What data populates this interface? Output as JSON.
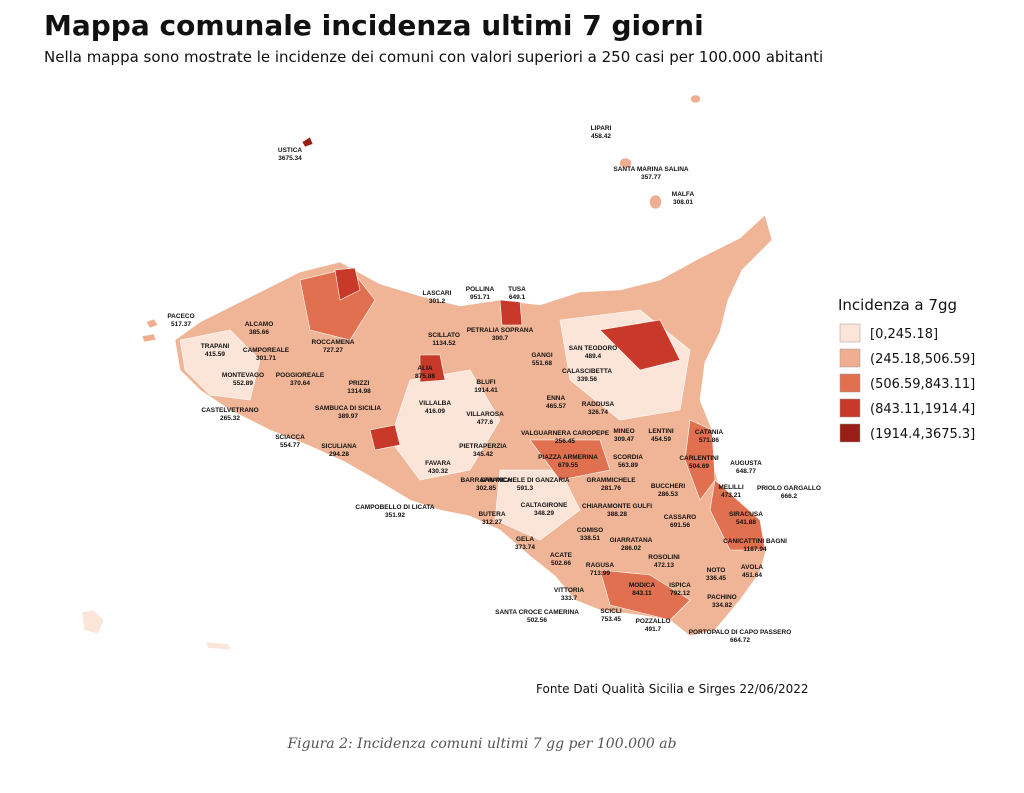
{
  "title": "Mappa comunale incidenza ultimi 7 giorni",
  "subtitle": "Nella mappa sono mostrate le incidenze dei comuni con valori superiori a 250 casi per 100.000 abitanti",
  "legend": {
    "title": "Incidenza a 7gg",
    "items": [
      {
        "label": "[0,245.18]",
        "color": "#fbe5d8"
      },
      {
        "label": "(245.18,506.59]",
        "color": "#efae91"
      },
      {
        "label": "(506.59,843.11]",
        "color": "#e0704f"
      },
      {
        "label": "(843.11,1914.4]",
        "color": "#c8392a"
      },
      {
        "label": "(1914.4,3675.3]",
        "color": "#9a1e18"
      }
    ]
  },
  "labels": [
    {
      "name": "USTICA",
      "value": "3675.34"
    },
    {
      "name": "LIPARI",
      "value": "458.42"
    },
    {
      "name": "SANTA MARINA SALINA",
      "value": "357.77"
    },
    {
      "name": "MALFA",
      "value": "308.01"
    },
    {
      "name": "LASCARI",
      "value": "301.2"
    },
    {
      "name": "POLLINA",
      "value": "951.71"
    },
    {
      "name": "TUSA",
      "value": "649.1"
    },
    {
      "name": "PACECO",
      "value": "517.37"
    },
    {
      "name": "ALCAMO",
      "value": "385.66"
    },
    {
      "name": "TRAPANI",
      "value": "415.59"
    },
    {
      "name": "CAMPOREALE",
      "value": "301.71"
    },
    {
      "name": "ROCCAMENA",
      "value": "727.27"
    },
    {
      "name": "SCILLATO",
      "value": "1134.52"
    },
    {
      "name": "PETRALIA SOPRANA",
      "value": "300.7"
    },
    {
      "name": "GANGI",
      "value": "551.68"
    },
    {
      "name": "SAN TEODORO",
      "value": "489.4"
    },
    {
      "name": "MONTEVAGO",
      "value": "552.89"
    },
    {
      "name": "POGGIOREALE",
      "value": "370.64"
    },
    {
      "name": "PRIZZI",
      "value": "1314.98"
    },
    {
      "name": "ALIA",
      "value": "875.88"
    },
    {
      "name": "BLUFI",
      "value": "1914.41"
    },
    {
      "name": "CALASCIBETTA",
      "value": "339.56"
    },
    {
      "name": "ENNA",
      "value": "465.57"
    },
    {
      "name": "CASTELVETRANO",
      "value": "265.32"
    },
    {
      "name": "SAMBUCA DI SICILIA",
      "value": "389.97"
    },
    {
      "name": "VILLALBA",
      "value": "416.09"
    },
    {
      "name": "RADDUSA",
      "value": "326.74"
    },
    {
      "name": "VILLAROSA",
      "value": "477.6"
    },
    {
      "name": "CATANIA",
      "value": "571.86"
    },
    {
      "name": "VALGUARNERA CAROPEPE",
      "value": "256.45"
    },
    {
      "name": "MINEO",
      "value": "309.47"
    },
    {
      "name": "LENTINI",
      "value": "454.59"
    },
    {
      "name": "SCIACCA",
      "value": "554.77"
    },
    {
      "name": "SICULIANA",
      "value": "294.28"
    },
    {
      "name": "PIETRAPERZIA",
      "value": "345.42"
    },
    {
      "name": "FAVARA",
      "value": "430.32"
    },
    {
      "name": "PIAZZA ARMERINA",
      "value": "679.55"
    },
    {
      "name": "SCORDIA",
      "value": "563.89"
    },
    {
      "name": "CARLENTINI",
      "value": "504.69"
    },
    {
      "name": "AUGUSTA",
      "value": "648.77"
    },
    {
      "name": "BARRAFRANCA",
      "value": "302.85"
    },
    {
      "name": "SAN MICHELE DI GANZARIA",
      "value": "591.3"
    },
    {
      "name": "GRAMMICHELE",
      "value": "281.76"
    },
    {
      "name": "BUCCHERI",
      "value": "286.53"
    },
    {
      "name": "MELILLI",
      "value": "473.21"
    },
    {
      "name": "PRIOLO GARGALLO",
      "value": "666.2"
    },
    {
      "name": "CAMPOBELLO DI LICATA",
      "value": "351.92"
    },
    {
      "name": "BUTERA",
      "value": "312.27"
    },
    {
      "name": "CALTAGIRONE",
      "value": "348.29"
    },
    {
      "name": "CHIARAMONTE GULFI",
      "value": "388.28"
    },
    {
      "name": "CASSARO",
      "value": "691.56"
    },
    {
      "name": "SIRACUSA",
      "value": "541.88"
    },
    {
      "name": "GELA",
      "value": "373.74"
    },
    {
      "name": "COMISO",
      "value": "338.51"
    },
    {
      "name": "GIARRATANA",
      "value": "286.02"
    },
    {
      "name": "CANICATTINI BAGNI",
      "value": "1187.94"
    },
    {
      "name": "ACATE",
      "value": "502.66"
    },
    {
      "name": "ROSOLINI",
      "value": "472.13"
    },
    {
      "name": "RAGUSA",
      "value": "713.99"
    },
    {
      "name": "NOTO",
      "value": "336.45"
    },
    {
      "name": "AVOLA",
      "value": "451.64"
    },
    {
      "name": "VITTORIA",
      "value": "333.7"
    },
    {
      "name": "MODICA",
      "value": "843.11"
    },
    {
      "name": "ISPICA",
      "value": "792.12"
    },
    {
      "name": "PACHINO",
      "value": "334.82"
    },
    {
      "name": "SANTA CROCE CAMERINA",
      "value": "502.56"
    },
    {
      "name": "SCICLI",
      "value": "753.45"
    },
    {
      "name": "POZZALLO",
      "value": "491.7"
    },
    {
      "name": "PORTOPALO DI CAPO PASSERO",
      "value": "664.72"
    }
  ],
  "source": "Fonte Dati Qualità Sicilia e Sirges 22/06/2022",
  "caption": "Figura 2: Incidenza comuni ultimi 7 gg per 100.000 ab"
}
